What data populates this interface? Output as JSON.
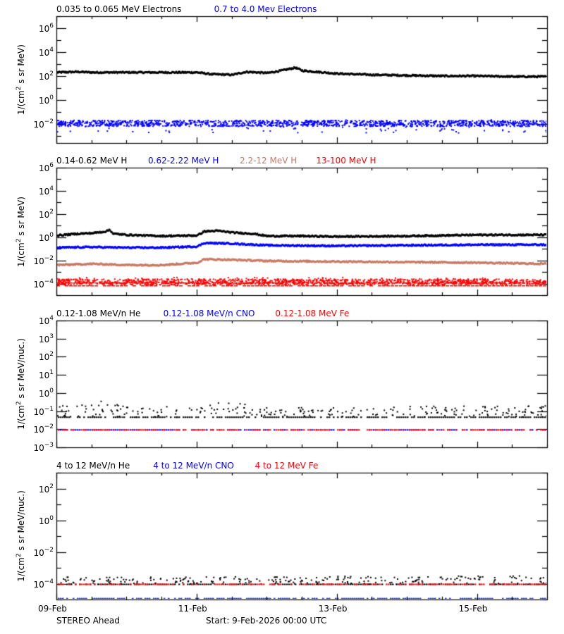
{
  "footer": {
    "spacecraft": "STEREO Ahead",
    "start": "Start:  9-Feb-2026 00:00 UTC"
  },
  "colors": {
    "black": "#000000",
    "blue": "#0000ff",
    "salmon": "#c87a64",
    "red": "#ff0000"
  },
  "chart_data": [
    {
      "type": "scatter",
      "panel": 1,
      "title_legend": [
        "0.035 to 0.065 MeV Electrons",
        "0.7 to 4.0 Mev Electrons"
      ],
      "ylabel": "1/(cm^2 s sr MeV)",
      "yscale": "log",
      "ylim_log10": [
        -3.6,
        7.0
      ],
      "yticks": [
        "10^-2",
        "10^0",
        "10^2",
        "10^4",
        "10^6"
      ],
      "xticks": [
        "09-Feb",
        "11-Feb",
        "13-Feb",
        "15-Feb"
      ],
      "xlim_days": [
        0,
        7
      ],
      "series": [
        {
          "name": "0.035 to 0.065 MeV Electrons",
          "color": "#000000",
          "style": "line",
          "x_days": [
            0,
            0.3,
            0.5,
            1.0,
            1.5,
            2.0,
            2.2,
            2.5,
            2.7,
            3.0,
            3.2,
            3.4,
            3.5,
            3.7,
            4.0,
            4.5,
            5.0,
            5.5,
            6.0,
            6.5,
            7.0
          ],
          "log10_values": [
            2.3,
            2.35,
            2.3,
            2.3,
            2.3,
            2.3,
            2.15,
            2.1,
            2.35,
            2.25,
            2.45,
            2.7,
            2.45,
            2.35,
            2.2,
            2.1,
            2.05,
            2.0,
            2.0,
            1.95,
            1.95
          ]
        },
        {
          "name": "0.7 to 4.0 Mev Electrons",
          "color": "#0000ff",
          "style": "dots",
          "x_days": [
            0,
            7
          ],
          "log10_values": [
            -1.9,
            -1.9
          ],
          "spread_log10": [
            -2.7,
            -1.6
          ]
        }
      ]
    },
    {
      "type": "scatter",
      "panel": 2,
      "title_legend": [
        "0.14-0.62 MeV H",
        "0.62-2.22 MeV H",
        "2.2-12 MeV H",
        "13-100 MeV H"
      ],
      "ylabel": "1/(cm^2 s sr MeV)",
      "yscale": "log",
      "ylim_log10": [
        -5.0,
        6.0
      ],
      "yticks": [
        "10^-4",
        "10^-2",
        "10^0",
        "10^2",
        "10^4",
        "10^6"
      ],
      "xticks": [
        "09-Feb",
        "11-Feb",
        "13-Feb",
        "15-Feb"
      ],
      "xlim_days": [
        0,
        7
      ],
      "series": [
        {
          "name": "0.14-0.62 MeV H",
          "color": "#000000",
          "style": "line",
          "x_days": [
            0,
            0.3,
            0.5,
            0.7,
            0.75,
            0.8,
            1.0,
            1.5,
            2.0,
            2.1,
            2.3,
            2.5,
            2.8,
            3.0,
            3.5,
            4.0,
            5.0,
            6.0,
            7.0
          ],
          "log10_values": [
            0.15,
            0.3,
            0.35,
            0.5,
            0.65,
            0.3,
            0.2,
            0.1,
            0.15,
            0.5,
            0.55,
            0.4,
            0.3,
            0.1,
            0.1,
            0.05,
            0.1,
            0.2,
            0.2
          ]
        },
        {
          "name": "0.62-2.22 MeV H",
          "color": "#0000ff",
          "style": "line",
          "x_days": [
            0,
            0.5,
            1.0,
            1.5,
            2.0,
            2.1,
            2.5,
            3.0,
            4.0,
            5.0,
            6.0,
            7.0
          ],
          "log10_values": [
            -0.9,
            -0.85,
            -0.9,
            -0.9,
            -0.8,
            -0.5,
            -0.55,
            -0.7,
            -0.75,
            -0.7,
            -0.65,
            -0.65
          ]
        },
        {
          "name": "2.2-12 MeV H",
          "color": "#c87a64",
          "style": "line",
          "x_days": [
            0,
            0.5,
            1.0,
            1.5,
            2.0,
            2.1,
            2.5,
            3.0,
            4.0,
            5.0,
            6.0,
            7.0
          ],
          "log10_values": [
            -2.4,
            -2.3,
            -2.4,
            -2.4,
            -2.2,
            -1.9,
            -1.95,
            -2.05,
            -2.1,
            -2.15,
            -2.2,
            -2.3
          ]
        },
        {
          "name": "13-100 MeV H",
          "color": "#ff0000",
          "style": "dots",
          "x_days": [
            0,
            7
          ],
          "log10_values": [
            -3.8,
            -3.8
          ],
          "spread_log10": [
            -4.1,
            -3.4
          ]
        }
      ]
    },
    {
      "type": "scatter",
      "panel": 3,
      "title_legend": [
        "0.12-1.08 MeV/n He",
        "0.12-1.08 MeV/n CNO",
        "0.12-1.08 MeV Fe"
      ],
      "ylabel": "1/(cm^2 s sr MeV/nuc.)",
      "yscale": "log",
      "ylim_log10": [
        -3.0,
        4.0
      ],
      "yticks": [
        "10^-3",
        "10^-2",
        "10^-1",
        "10^0",
        "10^1",
        "10^2",
        "10^3",
        "10^4"
      ],
      "xticks": [
        "09-Feb",
        "11-Feb",
        "13-Feb",
        "15-Feb"
      ],
      "xlim_days": [
        0,
        7
      ],
      "series": [
        {
          "name": "0.12-1.08 MeV/n He",
          "color": "#000000",
          "style": "dots",
          "x_days": [
            0,
            0.5,
            1.0,
            2.0,
            2.4,
            3.0,
            7.0
          ],
          "log10_values": [
            -1.3,
            -1.3,
            -1.3,
            -1.3,
            -1.3,
            -1.3,
            -1.3
          ],
          "upper_spikes_log10": [
            -0.9,
            -0.4,
            -0.9,
            -0.8,
            -0.6,
            -0.9,
            -0.8
          ]
        },
        {
          "name": "0.12-1.08 MeV/n CNO",
          "color": "#0000ff",
          "style": "dots",
          "x_days": [
            0,
            7
          ],
          "log10_values": [
            -2.0,
            -2.0
          ]
        },
        {
          "name": "0.12-1.08 MeV Fe",
          "color": "#ff0000",
          "style": "dots",
          "x_days": [
            0,
            7
          ],
          "log10_values": [
            -2.0,
            -2.0
          ]
        }
      ]
    },
    {
      "type": "scatter",
      "panel": 4,
      "title_legend": [
        "4 to 12 MeV/n He",
        "4 to 12 MeV/n CNO",
        "4 to 12 MeV Fe"
      ],
      "ylabel": "1/(cm^2 s sr MeV/nuc.)",
      "yscale": "log",
      "ylim_log10": [
        -5.0,
        3.0
      ],
      "yticks": [
        "10^-4",
        "10^-2",
        "10^0",
        "10^2"
      ],
      "xticks": [
        "09-Feb",
        "11-Feb",
        "13-Feb",
        "15-Feb"
      ],
      "xlim_days": [
        0,
        7
      ],
      "series": [
        {
          "name": "4 to 12 MeV/n He",
          "color": "#000000",
          "style": "dots",
          "x_days": [
            0,
            7
          ],
          "log10_values": [
            -4.0,
            -4.0
          ],
          "upper_spikes_log10": [
            -3.7,
            -3.6
          ]
        },
        {
          "name": "4 to 12 MeV/n CNO",
          "color": "#0000ff",
          "style": "dots",
          "x_days": [
            0,
            7
          ],
          "log10_values": [
            -4.9,
            -4.9
          ]
        },
        {
          "name": "4 to 12 MeV Fe",
          "color": "#ff0000",
          "style": "dots",
          "x_days": [
            0.8
          ],
          "log10_values": [
            -4.0
          ]
        }
      ]
    }
  ]
}
